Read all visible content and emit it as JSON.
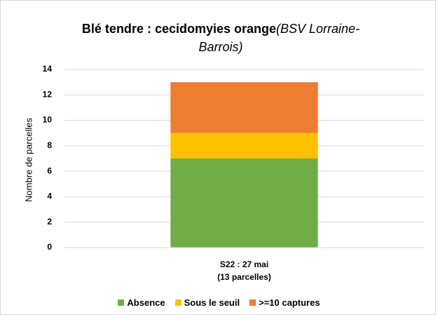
{
  "chart_data": {
    "type": "stacked_bar",
    "title": "Blé tendre : cecidomyies orange",
    "title_note": "(BSV Lorraine-Barrois)",
    "ylabel": "Nombre de parcelles",
    "categories": [
      "S22 : 27 mai\n(13 parcelles)"
    ],
    "series": [
      {
        "name": "Absence",
        "color": "#70ad47",
        "values": [
          7
        ]
      },
      {
        "name": "Sous le seuil",
        "color": "#ffc000",
        "values": [
          2
        ]
      },
      {
        "name": ">=10 captures",
        "color": "#ed7d31",
        "values": [
          4
        ]
      }
    ],
    "ylim": [
      0,
      14
    ],
    "yticks": [
      0,
      2,
      4,
      6,
      8,
      10,
      12,
      14
    ],
    "grid": true,
    "legend": "bottom"
  }
}
